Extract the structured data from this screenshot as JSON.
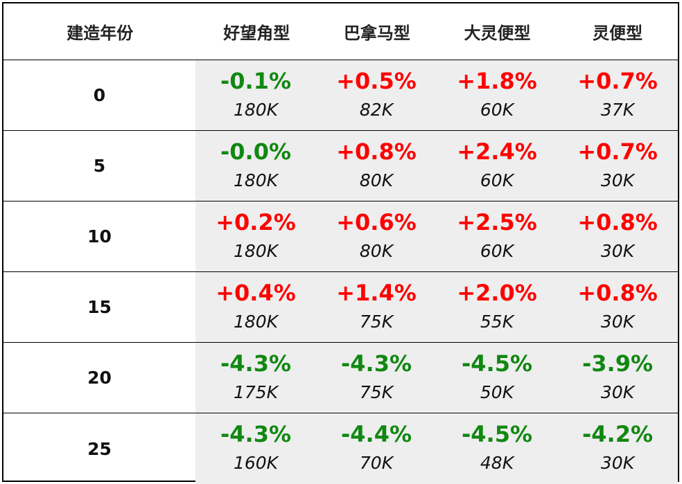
{
  "chart_data": {
    "type": "table",
    "columns": [
      "建造年份",
      "好望角型",
      "巴拿马型",
      "大灵便型",
      "灵便型"
    ],
    "rows": [
      {
        "year": "0",
        "cells": [
          {
            "pct": "-0.1%",
            "price": "180K"
          },
          {
            "pct": "+0.5%",
            "price": "82K"
          },
          {
            "pct": "+1.8%",
            "price": "60K"
          },
          {
            "pct": "+0.7%",
            "price": "37K"
          }
        ]
      },
      {
        "year": "5",
        "cells": [
          {
            "pct": "-0.0%",
            "price": "180K"
          },
          {
            "pct": "+0.8%",
            "price": "80K"
          },
          {
            "pct": "+2.4%",
            "price": "60K"
          },
          {
            "pct": "+0.7%",
            "price": "30K"
          }
        ]
      },
      {
        "year": "10",
        "cells": [
          {
            "pct": "+0.2%",
            "price": "180K"
          },
          {
            "pct": "+0.6%",
            "price": "80K"
          },
          {
            "pct": "+2.5%",
            "price": "60K"
          },
          {
            "pct": "+0.8%",
            "price": "30K"
          }
        ]
      },
      {
        "year": "15",
        "cells": [
          {
            "pct": "+0.4%",
            "price": "180K"
          },
          {
            "pct": "+1.4%",
            "price": "75K"
          },
          {
            "pct": "+2.0%",
            "price": "55K"
          },
          {
            "pct": "+0.8%",
            "price": "30K"
          }
        ]
      },
      {
        "year": "20",
        "cells": [
          {
            "pct": "-4.3%",
            "price": "175K"
          },
          {
            "pct": "-4.3%",
            "price": "75K"
          },
          {
            "pct": "-4.5%",
            "price": "50K"
          },
          {
            "pct": "-3.9%",
            "price": "30K"
          }
        ]
      },
      {
        "year": "25",
        "cells": [
          {
            "pct": "-4.3%",
            "price": "160K"
          },
          {
            "pct": "-4.4%",
            "price": "70K"
          },
          {
            "pct": "-4.5%",
            "price": "48K"
          },
          {
            "pct": "-4.2%",
            "price": "30K"
          }
        ]
      }
    ],
    "colors": {
      "positive": "#ff0000",
      "negative": "#118811",
      "data_background": "#eeeeee"
    }
  }
}
